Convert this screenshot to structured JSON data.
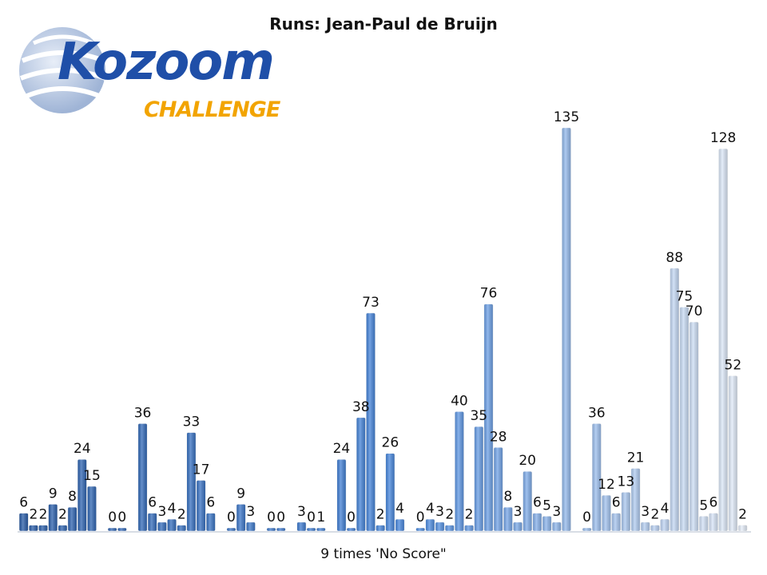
{
  "logo": {
    "word": "Kozoom",
    "sub": "CHALLENGE"
  },
  "chart_data": {
    "type": "bar",
    "title": "Runs: Jean-Paul de Bruijn",
    "footer": "9 times 'No Score\"",
    "xlabel": "",
    "ylabel": "",
    "ylim": [
      0,
      135
    ],
    "grid": false,
    "legend": "none",
    "colors": {
      "start": "#2a5da8",
      "mid": "#4a8ae0",
      "end": "#e6eefa"
    },
    "groups": [
      [
        6,
        2,
        2,
        9,
        2,
        8,
        24,
        15
      ],
      [
        0,
        0
      ],
      [
        36,
        6,
        3,
        4,
        2,
        33,
        17,
        6
      ],
      [
        0,
        9,
        3
      ],
      [
        0,
        0
      ],
      [
        3,
        0,
        1
      ],
      [
        24,
        0,
        38,
        73,
        2,
        26,
        4
      ],
      [
        0,
        4,
        3,
        2,
        40,
        2,
        35,
        76,
        28,
        8,
        3,
        20,
        6,
        5,
        3,
        135
      ],
      [
        0,
        36,
        12,
        6,
        13,
        21,
        3,
        2,
        4,
        88,
        75,
        70,
        5,
        6,
        128,
        52,
        2
      ]
    ]
  }
}
